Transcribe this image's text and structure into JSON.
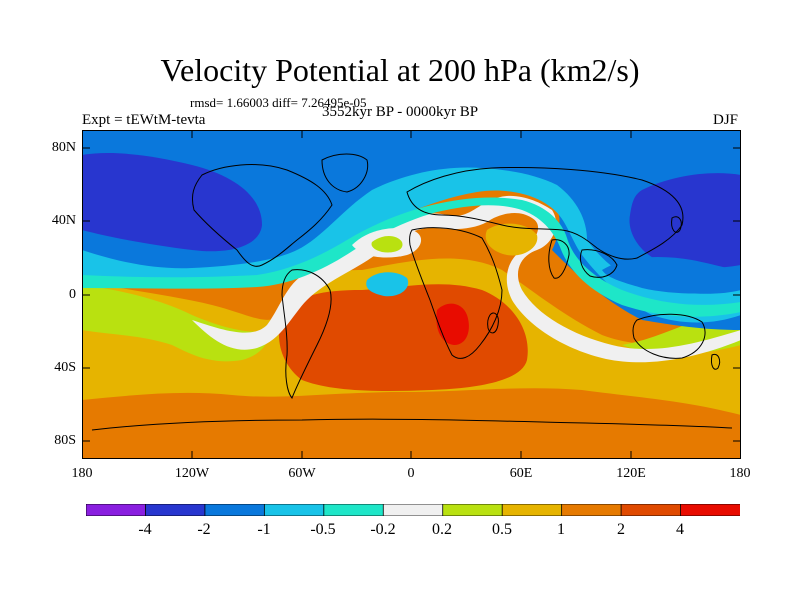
{
  "title": "Velocity Potential at 200 hPa (km2/s)",
  "stats": "rmsd= 1.66003 diff= 7.26495e-05",
  "experiment": "Expt = tEWtM-tevta",
  "period": "3552kyr BP - 0000kyr BP",
  "season": "DJF",
  "y_axis_labels": [
    "80N",
    "40N",
    "0",
    "40S",
    "80S"
  ],
  "x_axis_labels": [
    "180",
    "120W",
    "60W",
    "0",
    "60E",
    "120E",
    "180"
  ],
  "colorbar": {
    "labels": [
      "-4",
      "-2",
      "-1",
      "-0.5",
      "-0.2",
      "0.2",
      "0.5",
      "1",
      "2",
      "4"
    ],
    "colors": [
      "#8a1fe0",
      "#2836cf",
      "#0a78dc",
      "#19c3e8",
      "#1ee6c8",
      "#f0f0f0",
      "#b9e110",
      "#e6b400",
      "#e67a00",
      "#e04a00",
      "#e80c00"
    ]
  },
  "map_colors": {
    "dark_blue": "#2836cf",
    "blue": "#0a78dc",
    "light_blue": "#19c3e8",
    "teal": "#1ee6c8",
    "white": "#f0f0f0",
    "yellow_green": "#b9e110",
    "gold": "#e6b400",
    "orange": "#e67a00",
    "red_orange": "#e04a00",
    "red": "#e80c00"
  }
}
